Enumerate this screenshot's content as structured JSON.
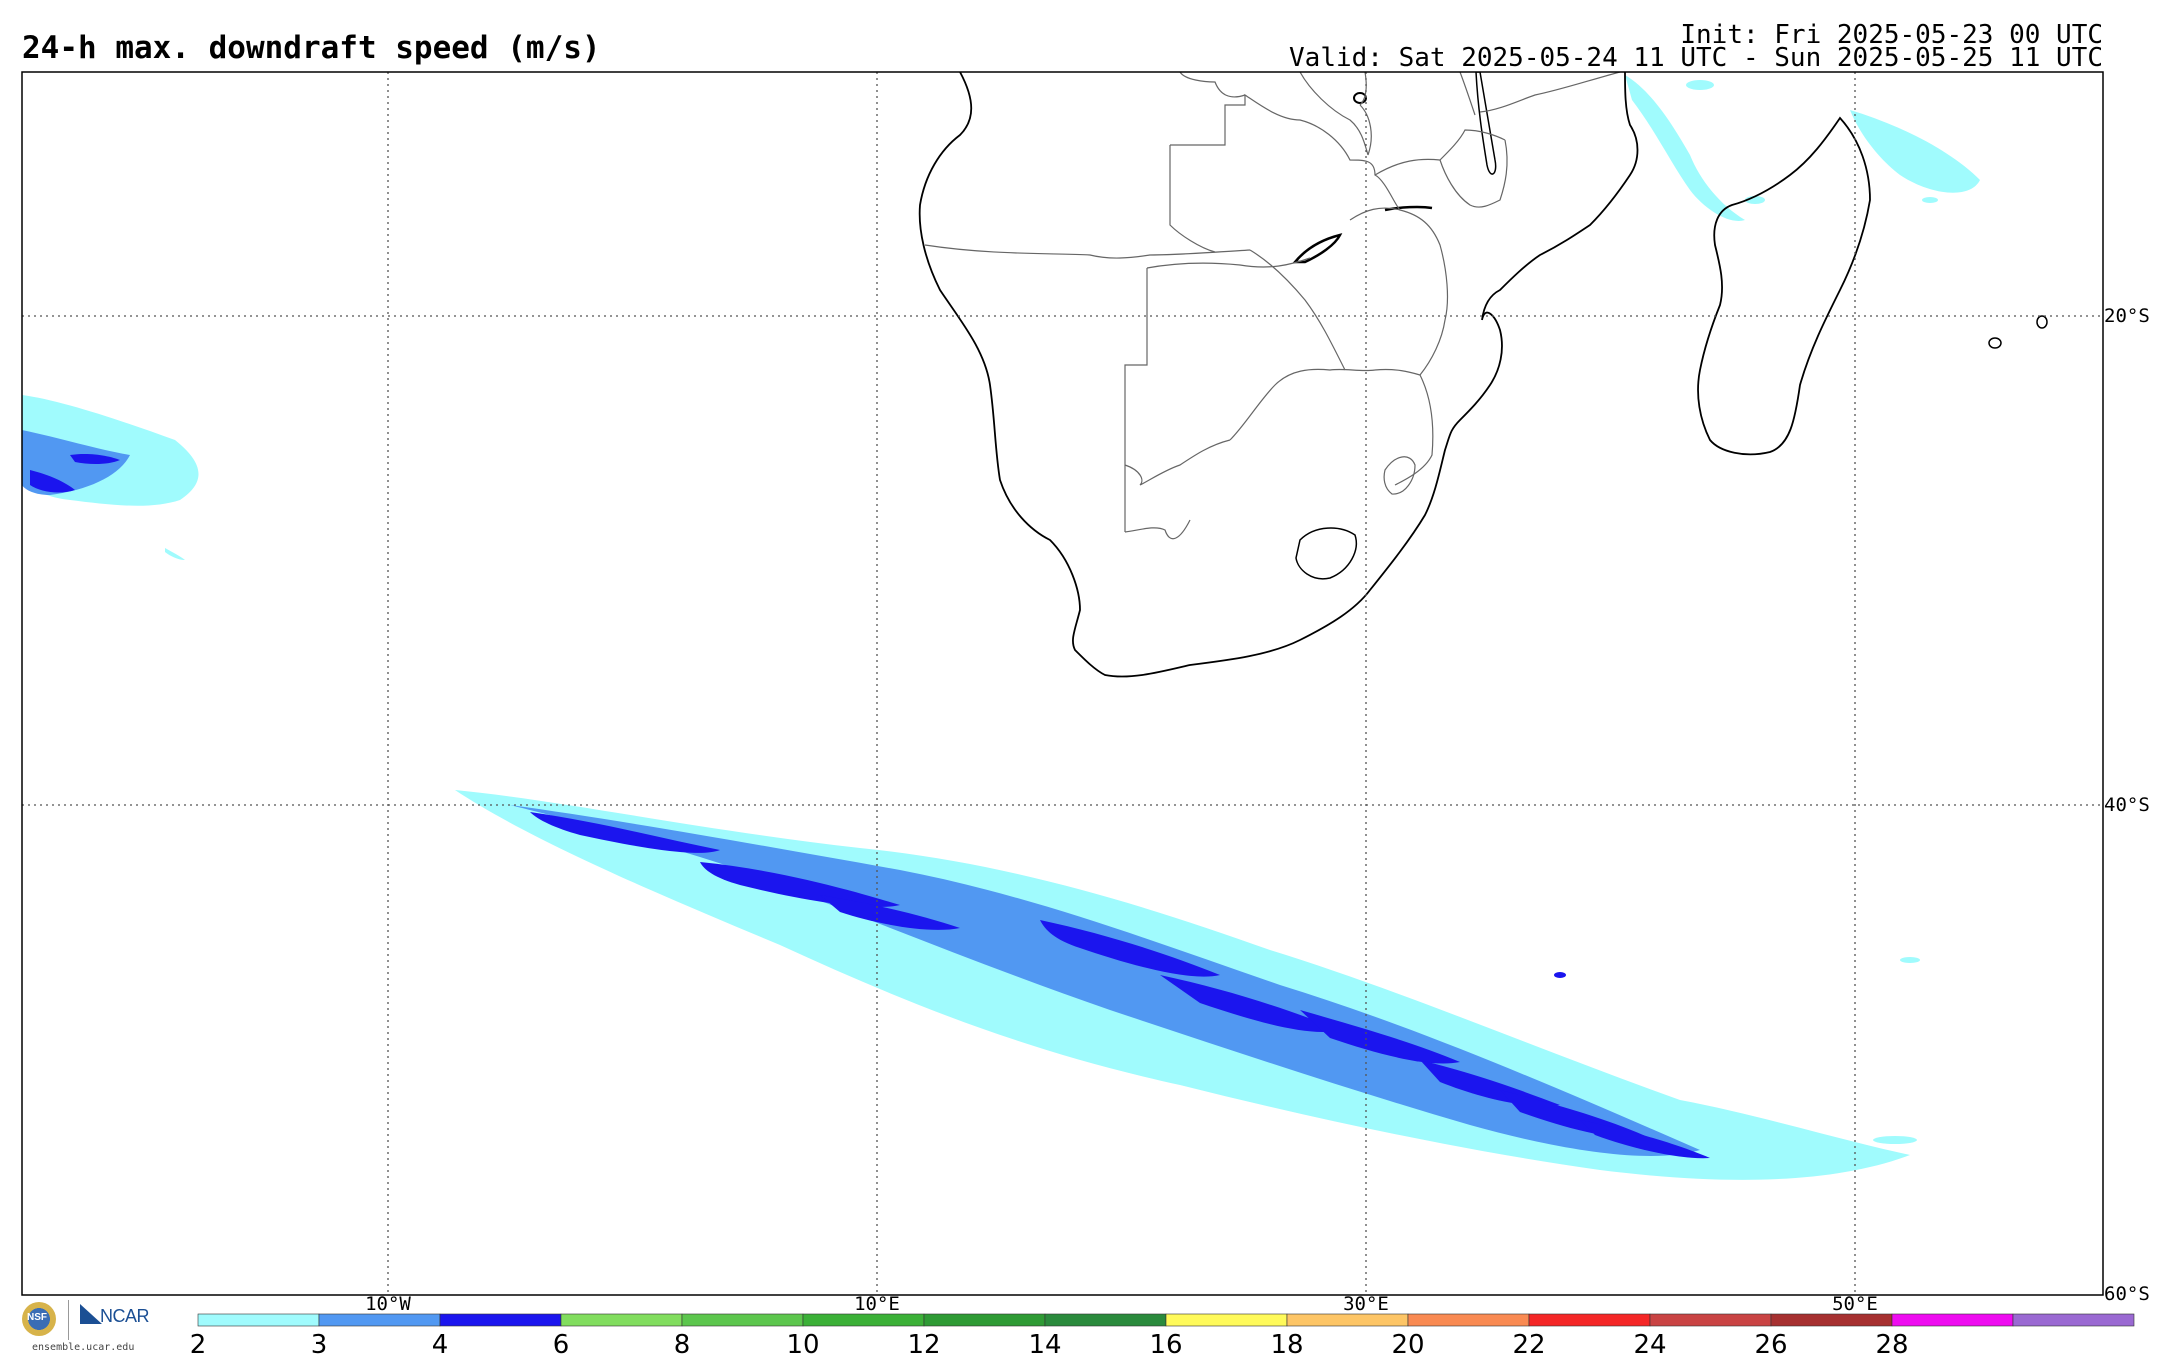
{
  "header": {
    "title": "24-h max. downdraft speed (m/s)",
    "init": "Init: Fri 2025-05-23 00 UTC",
    "valid": "Valid: Sat 2025-05-24 11 UTC - Sun 2025-05-25 11 UTC"
  },
  "map": {
    "projection": "cylindrical",
    "lon_range": [
      -25,
      60
    ],
    "lat_range": [
      -60,
      -10
    ],
    "lon_labels": [
      "10°W",
      "10°E",
      "30°E",
      "50°E"
    ],
    "lat_labels": [
      "20°S",
      "40°S",
      "60°S"
    ],
    "gridlines": "dotted",
    "features": [
      "coastlines",
      "country borders",
      "lakes"
    ]
  },
  "colorbar": {
    "levels": [
      "2",
      "3",
      "4",
      "6",
      "8",
      "10",
      "12",
      "14",
      "16",
      "18",
      "20",
      "22",
      "24",
      "26",
      "28"
    ],
    "colors": [
      "#a0fbfd",
      "#5198f2",
      "#1b15ee",
      "#81dd5e",
      "#5cc64d",
      "#3bb037",
      "#2e9a34",
      "#2a8a3c",
      "#fffa5a",
      "#fdc566",
      "#f98a52",
      "#f42626",
      "#c94343",
      "#a63030",
      "#ee0cf0",
      "#9a69d2"
    ]
  },
  "logos": {
    "nsf_text": "NSF",
    "ncar_text": "NCAR",
    "url": "ensemble.ucar.edu"
  }
}
